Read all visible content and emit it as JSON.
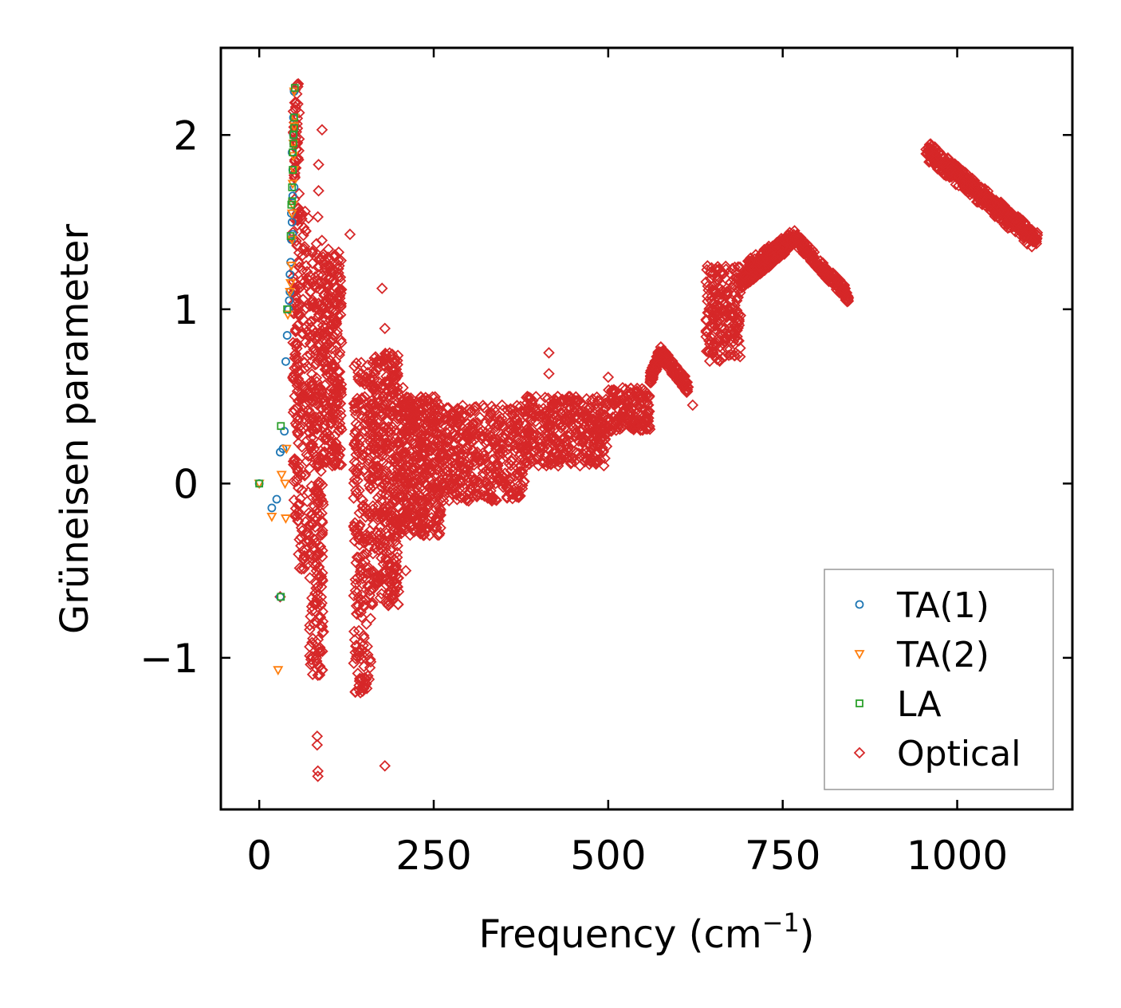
{
  "chart_data": {
    "type": "scatter",
    "title": "",
    "xlabel_main": "Frequency (cm",
    "xlabel_sup": "−1",
    "xlabel_end": ")",
    "ylabel": "Grüneisen parameter",
    "xlim": [
      -55,
      1165
    ],
    "ylim": [
      -1.87,
      2.5
    ],
    "xticks": [
      0,
      250,
      500,
      750,
      1000
    ],
    "xtick_labels": [
      "0",
      "250",
      "500",
      "750",
      "1000"
    ],
    "yticks": [
      -1,
      0,
      1,
      2
    ],
    "ytick_labels": [
      "−1",
      "0",
      "1",
      "2"
    ],
    "legend_position": "lower-right",
    "series": [
      {
        "name": "TA(1)",
        "marker": "circle",
        "color": "#1f77b4",
        "points": [
          [
            0,
            0
          ],
          [
            18,
            -0.14
          ],
          [
            25,
            -0.09
          ],
          [
            30,
            -0.65
          ],
          [
            30,
            0.18
          ],
          [
            34,
            0.2
          ],
          [
            36,
            0.3
          ],
          [
            38,
            0.7
          ],
          [
            40,
            0.85
          ],
          [
            42,
            1.0
          ],
          [
            43,
            1.05
          ],
          [
            44,
            1.1
          ],
          [
            44,
            1.2
          ],
          [
            45,
            1.27
          ],
          [
            46,
            1.4
          ],
          [
            47,
            1.5
          ],
          [
            48,
            1.65
          ],
          [
            48,
            1.8
          ],
          [
            49,
            2.0
          ],
          [
            50,
            2.25
          ],
          [
            48,
            1.43
          ],
          [
            46,
            1.55
          ],
          [
            50,
            1.7
          ],
          [
            47,
            1.9
          ],
          [
            49,
            2.1
          ]
        ]
      },
      {
        "name": "TA(2)",
        "marker": "triangle-down",
        "color": "#ff7f0e",
        "points": [
          [
            0,
            0
          ],
          [
            18,
            -0.19
          ],
          [
            27,
            -1.07
          ],
          [
            32,
            0.05
          ],
          [
            37,
            0.0
          ],
          [
            38,
            -0.2
          ],
          [
            39,
            0.2
          ],
          [
            41,
            0.97
          ],
          [
            44,
            1.1
          ],
          [
            45,
            1.15
          ],
          [
            46,
            1.25
          ],
          [
            47,
            1.4
          ],
          [
            48,
            1.6
          ],
          [
            48,
            1.72
          ],
          [
            49,
            1.88
          ],
          [
            50,
            2.05
          ],
          [
            50,
            2.25
          ],
          [
            51,
            2.1
          ],
          [
            47,
            1.55
          ],
          [
            49,
            1.95
          ],
          [
            50,
            1.8
          ]
        ]
      },
      {
        "name": "LA",
        "marker": "square",
        "color": "#2ca02c",
        "points": [
          [
            0,
            0
          ],
          [
            31,
            -0.65
          ],
          [
            31,
            0.33
          ],
          [
            40,
            1.0
          ],
          [
            45,
            1.42
          ],
          [
            46,
            1.6
          ],
          [
            47,
            1.7
          ],
          [
            48,
            1.8
          ],
          [
            48,
            1.9
          ],
          [
            49,
            2.0
          ],
          [
            50,
            2.1
          ],
          [
            51,
            2.27
          ],
          [
            49,
            1.95
          ],
          [
            47,
            1.62
          ],
          [
            50,
            2.04
          ]
        ]
      }
    ],
    "optical_series": {
      "name": "Optical",
      "marker": "diamond",
      "color": "#d62728",
      "clusters": [
        {
          "x": [
            48,
            58
          ],
          "y": [
            -0.2,
            2.3
          ],
          "count": 140
        },
        {
          "x": [
            55,
            72
          ],
          "y": [
            -0.5,
            1.6
          ],
          "count": 120
        },
        {
          "x": [
            72,
            92
          ],
          "y": [
            -1.1,
            1.4
          ],
          "count": 260
        },
        {
          "x": [
            92,
            118
          ],
          "y": [
            0.1,
            1.35
          ],
          "count": 240
        },
        {
          "x": [
            135,
            160
          ],
          "y": [
            -1.2,
            0.7
          ],
          "count": 220
        },
        {
          "x": [
            160,
            200
          ],
          "y": [
            -0.7,
            0.75
          ],
          "count": 380
        },
        {
          "x": [
            200,
            260
          ],
          "y": [
            -0.3,
            0.5
          ],
          "count": 420
        },
        {
          "x": [
            260,
            380
          ],
          "y": [
            -0.1,
            0.45
          ],
          "count": 420
        },
        {
          "x": [
            380,
            500
          ],
          "y": [
            0.1,
            0.5
          ],
          "count": 380
        },
        {
          "x": [
            500,
            560
          ],
          "y": [
            0.3,
            0.55
          ],
          "count": 160
        },
        {
          "x": [
            640,
            690
          ],
          "y": [
            0.7,
            1.25
          ],
          "count": 200
        }
      ],
      "bands": [
        {
          "x0": 560,
          "y0": 0.6,
          "x1": 575,
          "y1": 0.75,
          "count": 50
        },
        {
          "x0": 575,
          "y0": 0.75,
          "x1": 615,
          "y1": 0.55,
          "count": 100
        },
        {
          "x0": 690,
          "y0": 1.15,
          "x1": 760,
          "y1": 1.38,
          "count": 220
        },
        {
          "x0": 700,
          "y0": 1.25,
          "x1": 770,
          "y1": 1.42,
          "count": 160
        },
        {
          "x0": 770,
          "y0": 1.4,
          "x1": 845,
          "y1": 1.07,
          "count": 160
        },
        {
          "x0": 960,
          "y0": 1.92,
          "x1": 1115,
          "y1": 1.4,
          "count": 280
        },
        {
          "x0": 955,
          "y0": 1.9,
          "x1": 1110,
          "y1": 1.38,
          "count": 200
        }
      ],
      "points": [
        [
          90,
          2.03
        ],
        [
          85,
          1.83
        ],
        [
          85,
          1.68
        ],
        [
          84,
          1.53
        ],
        [
          130,
          1.43
        ],
        [
          176,
          1.12
        ],
        [
          180,
          0.89
        ],
        [
          190,
          0.65
        ],
        [
          206,
          0.55
        ],
        [
          415,
          0.75
        ],
        [
          415,
          0.63
        ],
        [
          500,
          0.61
        ],
        [
          621,
          0.45
        ],
        [
          180,
          -1.62
        ],
        [
          83,
          -1.45
        ],
        [
          83,
          -1.5
        ],
        [
          84,
          -1.65
        ],
        [
          84,
          -1.68
        ],
        [
          90,
          -0.82
        ],
        [
          86,
          -0.95
        ],
        [
          84,
          -1.1
        ],
        [
          145,
          -1.2
        ],
        [
          150,
          -1.05
        ],
        [
          185,
          -0.7
        ],
        [
          210,
          -0.5
        ],
        [
          210,
          0.3
        ],
        [
          250,
          -0.25
        ],
        [
          300,
          -0.1
        ],
        [
          30,
          -0.65
        ],
        [
          90,
          -0.55
        ],
        [
          88,
          -0.7
        ],
        [
          92,
          -0.85
        ],
        [
          65,
          -0.42
        ],
        [
          760,
          1.44
        ]
      ]
    }
  }
}
